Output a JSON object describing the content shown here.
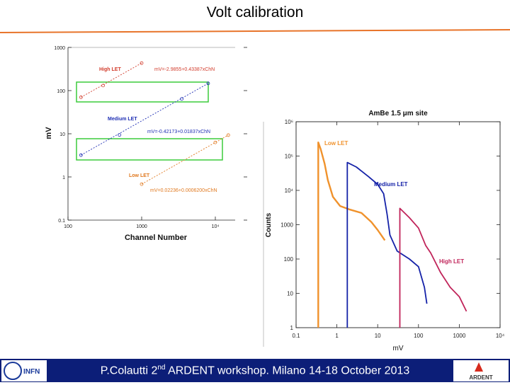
{
  "slide": {
    "title": "Volt calibration",
    "footer": {
      "author": "P.Colautti 2",
      "sup": "nd",
      "rest": " ARDENT workshop. Milano 14-18 October 2013"
    },
    "left_logo_text": "INFN",
    "right_logo_text": "ARDENT",
    "colors": {
      "footer": "#0c1e78",
      "rule": "#e8742a",
      "highlight": "#3ccc3c"
    }
  },
  "chart_data": [
    {
      "type": "line",
      "xlabel": "Channel Number",
      "ylabel": "mV",
      "xscale": "log",
      "yscale": "log",
      "xlim": [
        100,
        20000
      ],
      "ylim": [
        0.1,
        1000
      ],
      "x_ticks": [
        "100",
        "1000",
        "10⁴"
      ],
      "y_ticks": [
        "0.1",
        "1",
        "10",
        "100",
        "1000"
      ],
      "series": [
        {
          "name": "High LET",
          "equation": "mV=-2.9855+0.43387xChN",
          "color": "#d23c2c",
          "points": [
            [
              150,
              70
            ],
            [
              300,
              131
            ],
            [
              1000,
              433
            ]
          ]
        },
        {
          "name": "Medium LET",
          "equation": "mV=-0.42173+0.01837xChN",
          "color": "#1f2fb4",
          "points": [
            [
              150,
              3.2
            ],
            [
              500,
              9.4
            ],
            [
              3500,
              64
            ],
            [
              8000,
              147
            ]
          ]
        },
        {
          "name": "Low LET",
          "equation": "mV=0.02236+0.0006200xChN",
          "color": "#e0781e",
          "points": [
            [
              1000,
              0.68
            ],
            [
              10000,
              6.3
            ],
            [
              15000,
              9.3
            ]
          ]
        }
      ]
    },
    {
      "type": "line",
      "title": "AmBe  1.5 μm site",
      "xlabel": "mV",
      "ylabel": "Counts",
      "xscale": "log",
      "yscale": "log",
      "xlim": [
        0.1,
        10000
      ],
      "ylim": [
        1,
        1000000
      ],
      "x_ticks": [
        "0.1",
        "1",
        "10",
        "100",
        "1000",
        "10⁴"
      ],
      "y_ticks": [
        "1",
        "10",
        "100",
        "1000",
        "10⁴",
        "10⁵",
        "10⁶"
      ],
      "series": [
        {
          "name": "Low LET",
          "color": "#f0922c",
          "points": [
            [
              0.35,
              250000
            ],
            [
              0.4,
              160000
            ],
            [
              0.5,
              60000
            ],
            [
              0.6,
              20000
            ],
            [
              0.8,
              6500
            ],
            [
              1.2,
              3500
            ],
            [
              2,
              2800
            ],
            [
              4,
              2200
            ],
            [
              7,
              1200
            ],
            [
              10,
              700
            ],
            [
              15,
              350
            ]
          ]
        },
        {
          "name": "Medium LET",
          "color": "#1522a8",
          "points": [
            [
              1.8,
              65000
            ],
            [
              3,
              48000
            ],
            [
              6,
              25000
            ],
            [
              10,
              15000
            ],
            [
              14,
              8000
            ],
            [
              17,
              2000
            ],
            [
              20,
              500
            ],
            [
              30,
              170
            ],
            [
              60,
              100
            ],
            [
              100,
              60
            ],
            [
              140,
              15
            ],
            [
              160,
              5
            ]
          ]
        },
        {
          "name": "High LET",
          "color": "#c0245a",
          "points": [
            [
              35,
              3000
            ],
            [
              60,
              1600
            ],
            [
              100,
              800
            ],
            [
              150,
              250
            ],
            [
              200,
              150
            ],
            [
              350,
              40
            ],
            [
              600,
              15
            ],
            [
              1000,
              8
            ],
            [
              1500,
              3
            ]
          ]
        }
      ]
    }
  ]
}
